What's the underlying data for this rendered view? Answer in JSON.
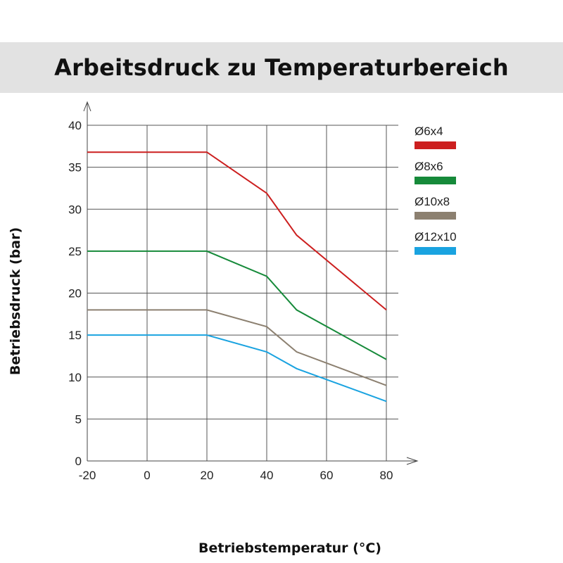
{
  "chart_data": {
    "type": "line",
    "title": "Arbeitsdruck zu Temperaturbereich",
    "xlabel": "Betriebstemperatur (°C)",
    "ylabel": "Betriebsdruck (bar)",
    "xlim": [
      -20,
      84
    ],
    "ylim": [
      0,
      40
    ],
    "xticks": [
      -20,
      0,
      20,
      40,
      60,
      80
    ],
    "yticks": [
      0,
      5,
      10,
      15,
      20,
      25,
      30,
      35,
      40
    ],
    "xtick_labels": [
      "-20",
      "0",
      "20",
      "40",
      "60",
      "80"
    ],
    "ytick_labels": [
      "0",
      "5",
      "10",
      "15",
      "20",
      "25",
      "30",
      "35",
      "40"
    ],
    "grid": true,
    "legend_position": "right",
    "series": [
      {
        "name": "Ø6x4",
        "color": "#cc1f1f",
        "x": [
          -20,
          20,
          40,
          50,
          80
        ],
        "y": [
          36.8,
          36.8,
          31.9,
          26.9,
          18
        ]
      },
      {
        "name": "Ø8x6",
        "color": "#168a3a",
        "x": [
          -20,
          20,
          40,
          50,
          80
        ],
        "y": [
          25,
          25,
          22,
          18,
          12.1
        ]
      },
      {
        "name": "Ø10x8",
        "color": "#8c8070",
        "x": [
          -20,
          20,
          40,
          50,
          80
        ],
        "y": [
          18,
          18,
          16,
          13,
          9
        ]
      },
      {
        "name": "Ø12x10",
        "color": "#1aa3e0",
        "x": [
          -20,
          20,
          40,
          50,
          80
        ],
        "y": [
          15,
          15,
          13,
          11,
          7.1
        ]
      }
    ]
  }
}
